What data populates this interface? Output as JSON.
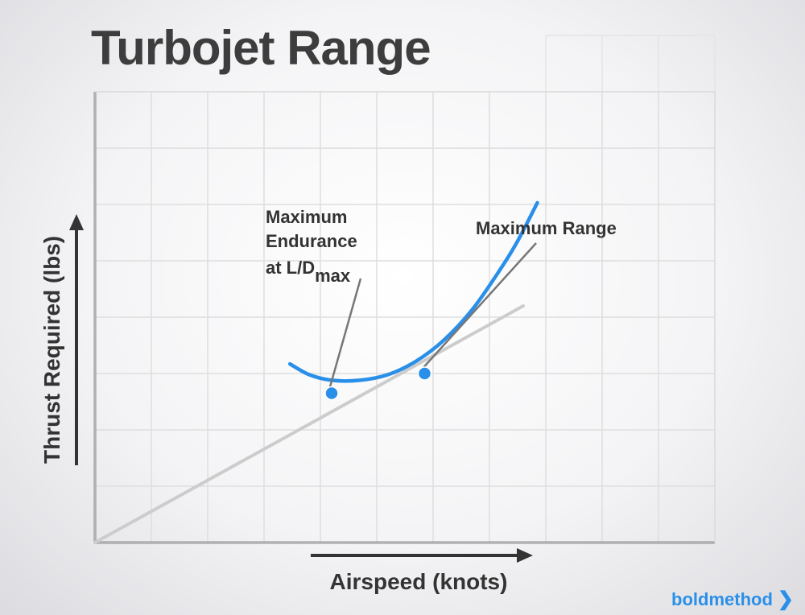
{
  "chart_data": {
    "type": "line",
    "title": "Turbojet Range",
    "xlabel": "Airspeed (knots)",
    "ylabel": "Thrust Required (lbs)",
    "grid": true,
    "series": [
      {
        "values": [
          [
            3.46,
            3.17
          ],
          [
            3.8,
            2.98
          ],
          [
            4.2,
            2.88
          ],
          [
            4.7,
            2.88
          ],
          [
            5.2,
            2.98
          ],
          [
            5.7,
            3.22
          ],
          [
            6.2,
            3.6
          ],
          [
            6.7,
            4.14
          ],
          [
            7.2,
            4.86
          ],
          [
            7.5,
            5.35
          ],
          [
            7.85,
            6.03
          ]
        ],
        "color": "#2a8fe8"
      },
      {
        "values": [
          [
            0,
            0
          ],
          [
            7.6,
            4.2
          ]
        ],
        "color": "#cccccc"
      }
    ],
    "points": [
      {
        "label": "Maximum Endurance at L/D",
        "subscript": "max",
        "x": 4.2,
        "y": 2.65
      },
      {
        "label": "Maximum Range",
        "x": 5.85,
        "y": 3.0
      }
    ],
    "xlim": [
      0,
      11
    ],
    "ylim": [
      0,
      8
    ]
  },
  "annotations": {
    "endurance_line1": "Maximum",
    "endurance_line2": "Endurance",
    "endurance_line3": "at L/D",
    "endurance_sub": "max",
    "range": "Maximum Range"
  },
  "brand": {
    "name": "boldmethod",
    "chevron": "❯"
  }
}
